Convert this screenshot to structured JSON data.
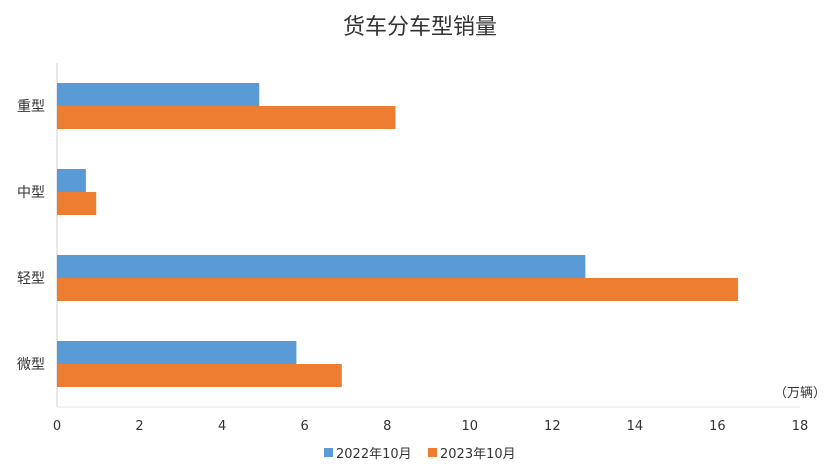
{
  "chart_data": {
    "type": "bar",
    "orientation": "horizontal",
    "title": "货车分车型销量",
    "unit_label": "（万辆）",
    "categories": [
      "重型",
      "中型",
      "轻型",
      "微型"
    ],
    "series": [
      {
        "name": "2022年10月",
        "color": "#5B9BD5",
        "values": [
          4.9,
          0.7,
          12.8,
          5.8
        ]
      },
      {
        "name": "2023年10月",
        "color": "#ED7D31",
        "values": [
          8.2,
          0.95,
          16.5,
          6.9
        ]
      }
    ],
    "xlim": [
      0,
      18
    ],
    "x_ticks": [
      0,
      2,
      4,
      6,
      8,
      10,
      12,
      14,
      16,
      18
    ],
    "grid": false,
    "legend_position": "bottom"
  }
}
